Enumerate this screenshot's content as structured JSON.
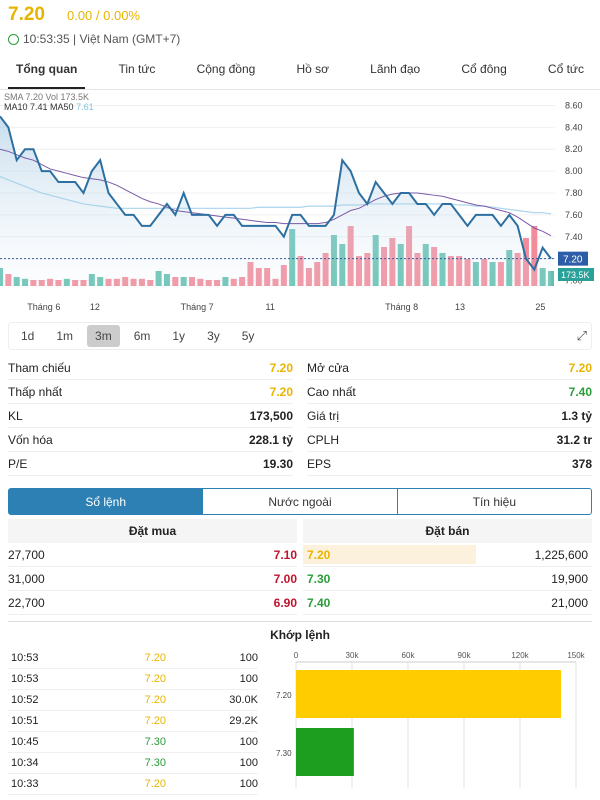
{
  "header": {
    "price": "7.20",
    "change": "0.00 / 0.00%",
    "time": "10:53:35 | Việt Nam (GMT+7)"
  },
  "tabs": [
    "Tổng quan",
    "Tin tức",
    "Cộng đồng",
    "Hồ sơ",
    "Lãnh đạo",
    "Cổ đông",
    "Cổ tức"
  ],
  "legend": {
    "line1": "SMA 7.20 Vol 173.5K",
    "line2_prefix": "MA10 7.41 MA50",
    "ma50": "7.61"
  },
  "chart_data": {
    "type": "line",
    "y_ticks": [
      "8.60",
      "8.40",
      "8.20",
      "8.00",
      "7.80",
      "7.60",
      "7.40",
      "7.20",
      "7.00"
    ],
    "ylim": [
      6.95,
      8.65
    ],
    "x_labels": [
      "Tháng 6",
      "12",
      "Tháng 7",
      "11",
      "Tháng 8",
      "13",
      "25"
    ],
    "price_tag": "7.20",
    "volume_tag": "173.5K",
    "close": [
      8.5,
      8.4,
      8.1,
      8.2,
      8.2,
      8.0,
      8.0,
      7.9,
      7.9,
      7.9,
      7.8,
      8.0,
      8.1,
      7.8,
      7.7,
      7.6,
      7.6,
      7.5,
      7.5,
      7.6,
      7.7,
      7.6,
      7.8,
      7.6,
      7.6,
      7.6,
      7.5,
      7.6,
      7.6,
      7.5,
      7.5,
      7.5,
      7.5,
      7.5,
      7.4,
      7.6,
      7.6,
      7.5,
      7.5,
      7.5,
      7.6,
      8.1,
      8.0,
      7.8,
      7.7,
      7.9,
      7.8,
      7.7,
      7.8,
      7.8,
      7.7,
      7.7,
      7.6,
      7.7,
      7.7,
      7.6,
      7.5,
      7.6,
      7.6,
      7.6,
      7.5,
      7.6,
      7.5,
      7.2,
      7.1,
      7.3,
      7.2
    ],
    "ma10": [
      8.2,
      8.18,
      8.15,
      8.12,
      8.1,
      8.06,
      8.02,
      8.0,
      7.98,
      7.96,
      7.94,
      7.93,
      7.92,
      7.9,
      7.87,
      7.83,
      7.79,
      7.75,
      7.72,
      7.7,
      7.67,
      7.64,
      7.63,
      7.62,
      7.61,
      7.6,
      7.59,
      7.58,
      7.57,
      7.56,
      7.55,
      7.54,
      7.53,
      7.53,
      7.52,
      7.52,
      7.52,
      7.52,
      7.52,
      7.53,
      7.56,
      7.6,
      7.64,
      7.66,
      7.7,
      7.74,
      7.77,
      7.79,
      7.8,
      7.8,
      7.8,
      7.79,
      7.78,
      7.77,
      7.75,
      7.73,
      7.71,
      7.69,
      7.68,
      7.66,
      7.64,
      7.62,
      7.58,
      7.53,
      7.48,
      7.45,
      7.41
    ],
    "ma50": [
      7.95,
      7.92,
      7.89,
      7.86,
      7.83,
      7.8,
      7.78,
      7.76,
      7.74,
      7.72,
      7.7,
      7.69,
      7.68,
      7.67,
      7.66,
      7.66,
      7.66,
      7.66,
      7.66,
      7.66,
      7.66,
      7.66,
      7.66,
      7.66,
      7.66,
      7.66,
      7.66,
      7.66,
      7.66,
      7.66,
      7.66,
      7.67,
      7.67,
      7.67,
      7.67,
      7.67,
      7.67,
      7.68,
      7.68,
      7.68,
      7.68,
      7.69,
      7.69,
      7.69,
      7.7,
      7.7,
      7.7,
      7.7,
      7.7,
      7.7,
      7.7,
      7.7,
      7.7,
      7.7,
      7.7,
      7.69,
      7.69,
      7.68,
      7.68,
      7.67,
      7.66,
      7.65,
      7.64,
      7.63,
      7.62,
      7.62,
      7.61
    ],
    "volume_up": [
      true,
      false,
      true,
      true,
      false,
      false,
      false,
      false,
      true,
      false,
      false,
      true,
      true,
      false,
      false,
      false,
      false,
      false,
      false,
      true,
      true,
      false,
      true,
      false,
      false,
      false,
      false,
      true,
      false,
      false,
      false,
      false,
      false,
      false,
      false,
      true,
      false,
      false,
      false,
      false,
      true,
      true,
      false,
      false,
      false,
      true,
      false,
      false,
      true,
      false,
      false,
      true,
      false,
      true,
      false,
      false,
      false,
      true,
      false,
      true,
      false,
      true,
      false,
      false,
      false,
      true,
      true
    ],
    "volume": [
      0.3,
      0.2,
      0.15,
      0.12,
      0.1,
      0.1,
      0.12,
      0.1,
      0.12,
      0.1,
      0.1,
      0.2,
      0.15,
      0.12,
      0.12,
      0.15,
      0.12,
      0.12,
      0.1,
      0.25,
      0.2,
      0.15,
      0.15,
      0.15,
      0.12,
      0.1,
      0.1,
      0.15,
      0.12,
      0.15,
      0.4,
      0.3,
      0.3,
      0.12,
      0.35,
      0.95,
      0.5,
      0.3,
      0.4,
      0.55,
      0.85,
      0.7,
      1.0,
      0.5,
      0.55,
      0.85,
      0.65,
      0.8,
      0.7,
      1.0,
      0.55,
      0.7,
      0.65,
      0.55,
      0.5,
      0.5,
      0.45,
      0.4,
      0.45,
      0.4,
      0.4,
      0.6,
      0.55,
      0.8,
      1.0,
      0.3,
      0.25
    ]
  },
  "ranges": [
    "1d",
    "1m",
    "3m",
    "6m",
    "1y",
    "3y",
    "5y"
  ],
  "stats": {
    "left": [
      {
        "label": "Tham chiếu",
        "value": "7.20",
        "color": "yel"
      },
      {
        "label": "Thấp nhất",
        "value": "7.20",
        "color": "yel"
      },
      {
        "label": "KL",
        "value": "173,500",
        "color": ""
      },
      {
        "label": "Vốn hóa",
        "value": "228.1 tỷ",
        "color": ""
      },
      {
        "label": "P/E",
        "value": "19.30",
        "color": ""
      }
    ],
    "right": [
      {
        "label": "Mở cửa",
        "value": "7.20",
        "color": "yel"
      },
      {
        "label": "Cao nhất",
        "value": "7.40",
        "color": "grn"
      },
      {
        "label": "Giá trị",
        "value": "1.3 tỷ",
        "color": ""
      },
      {
        "label": "CPLH",
        "value": "31.2 tr",
        "color": ""
      },
      {
        "label": "EPS",
        "value": "378",
        "color": ""
      }
    ]
  },
  "subtabs": [
    "Sổ lệnh",
    "Nước ngoài",
    "Tín hiệu"
  ],
  "book": {
    "bid_title": "Đặt mua",
    "ask_title": "Đặt bán",
    "bids": [
      {
        "vol": "27,700",
        "price": "7.10"
      },
      {
        "vol": "31,000",
        "price": "7.00"
      },
      {
        "vol": "22,700",
        "price": "6.90"
      }
    ],
    "asks": [
      {
        "price": "7.20",
        "vol": "1,225,600",
        "color": "yel",
        "fill": 0.6
      },
      {
        "price": "7.30",
        "vol": "19,900",
        "color": "grn",
        "fill": 0
      },
      {
        "price": "7.40",
        "vol": "21,000",
        "color": "grn",
        "fill": 0
      }
    ]
  },
  "matched": {
    "title": "Khớp lệnh",
    "rows": [
      {
        "time": "10:53",
        "price": "7.20",
        "vol": "100",
        "color": "yel"
      },
      {
        "time": "10:53",
        "price": "7.20",
        "vol": "100",
        "color": "yel"
      },
      {
        "time": "10:52",
        "price": "7.20",
        "vol": "30.0K",
        "color": "yel"
      },
      {
        "time": "10:51",
        "price": "7.20",
        "vol": "29.2K",
        "color": "yel"
      },
      {
        "time": "10:45",
        "price": "7.30",
        "vol": "100",
        "color": "grn"
      },
      {
        "time": "10:34",
        "price": "7.30",
        "vol": "100",
        "color": "grn"
      },
      {
        "time": "10:33",
        "price": "7.20",
        "vol": "100",
        "color": "yel"
      }
    ],
    "volume_chart": {
      "x_ticks": [
        "0",
        "30k",
        "60k",
        "90k",
        "120k",
        "150k"
      ],
      "xlim": [
        0,
        150000
      ],
      "bars": [
        {
          "label": "7.20",
          "value": 142000,
          "color": "#ffcc00"
        },
        {
          "label": "7.30",
          "value": 31000,
          "color": "#1e9e1e"
        }
      ]
    }
  }
}
